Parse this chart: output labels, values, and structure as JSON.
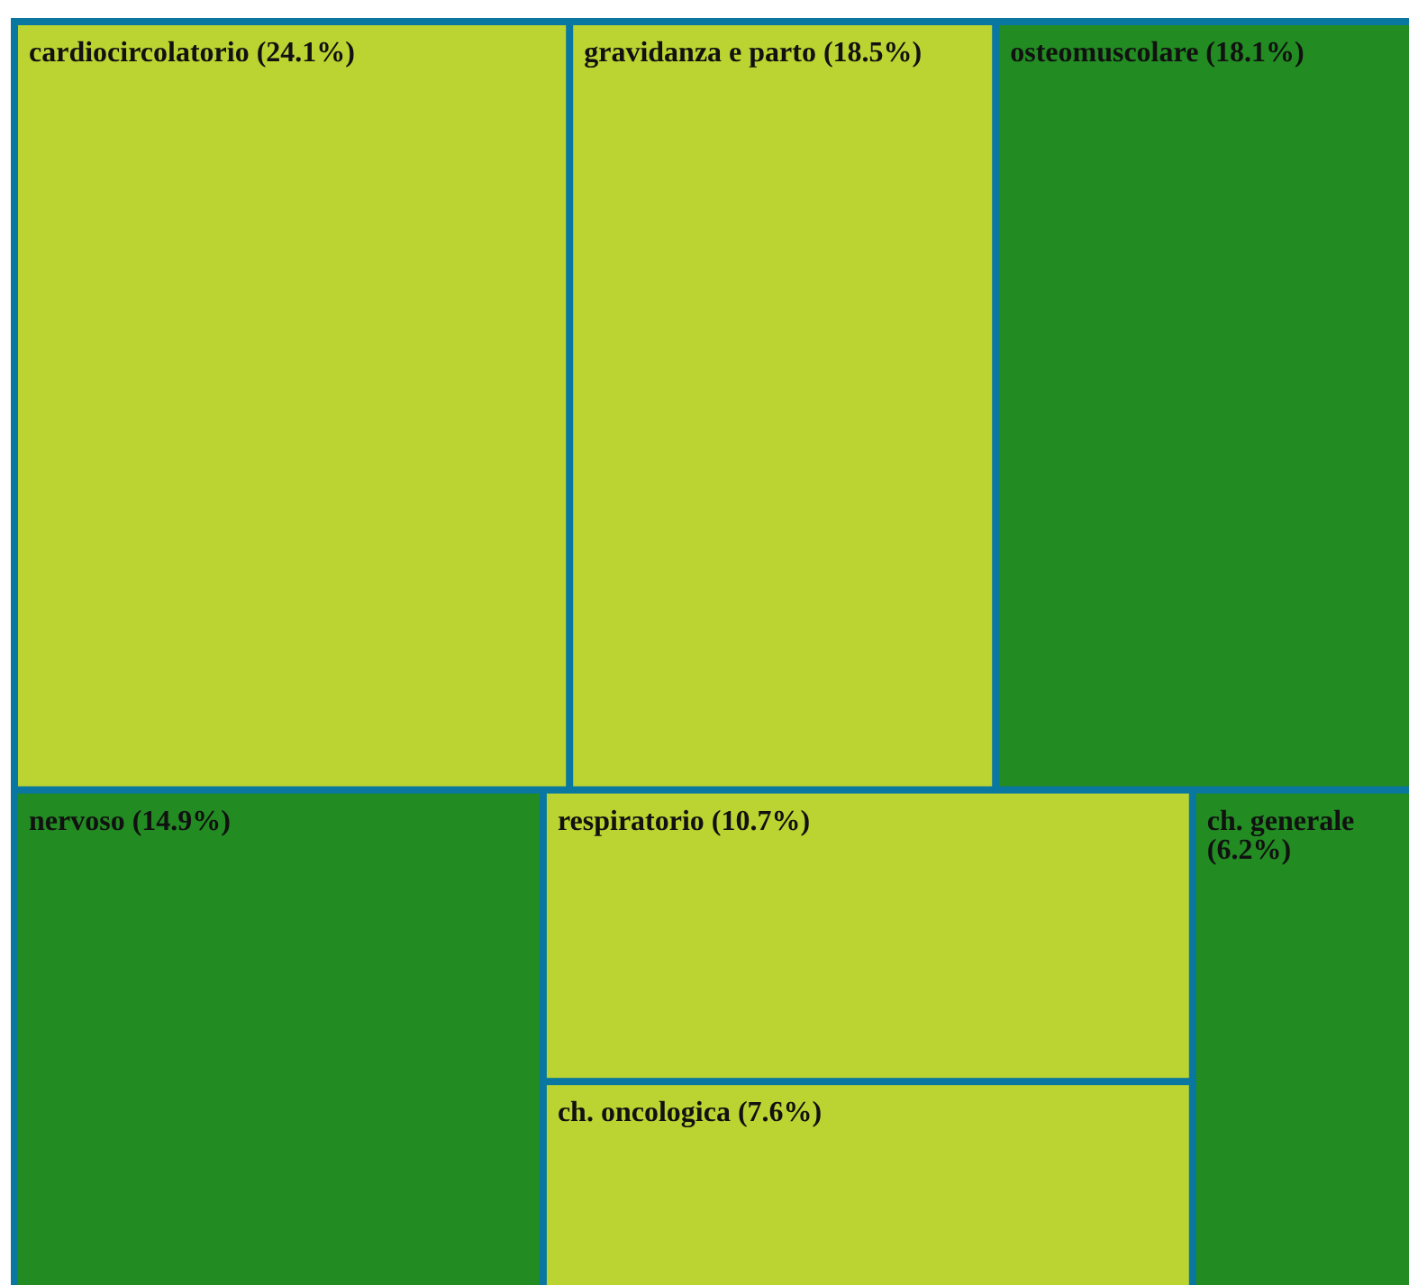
{
  "chart_data": {
    "type": "other",
    "categories": [
      "cardiocircolatorio",
      "gravidanza e parto",
      "osteomuscolare",
      "nervoso",
      "respiratorio",
      "ch. oncologica",
      "ch. generale"
    ],
    "values": [
      24.1,
      18.5,
      18.1,
      14.9,
      10.7,
      7.6,
      6.2
    ],
    "value_labels": [
      "(24.1%)",
      "(18.5%)",
      "(18.1%)",
      "(14.9%)",
      "(10.7%)",
      "(7.6%)",
      "(6.2%)"
    ],
    "colors": [
      "#bcd431",
      "#bcd431",
      "#228b22",
      "#228b22",
      "#bcd431",
      "#bcd431",
      "#228b22"
    ]
  }
}
